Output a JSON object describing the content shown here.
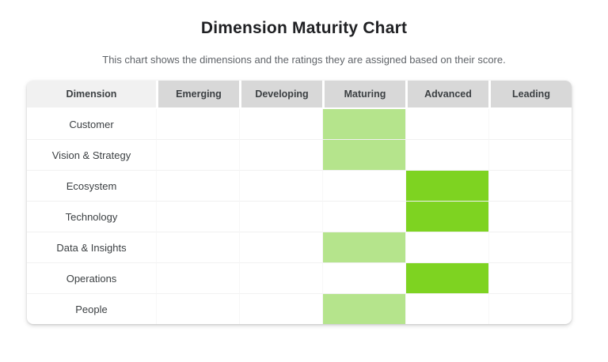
{
  "header": {
    "title": "Dimension Maturity Chart",
    "subtitle": "This chart shows the dimensions and the ratings they are assigned based on their score."
  },
  "chart_data": {
    "type": "heatmap",
    "title": "Dimension Maturity Chart",
    "columns": [
      "Dimension",
      "Emerging",
      "Developing",
      "Maturing",
      "Advanced",
      "Leading"
    ],
    "rows": [
      {
        "dimension": "Customer",
        "rating": "Maturing"
      },
      {
        "dimension": "Vision & Strategy",
        "rating": "Maturing"
      },
      {
        "dimension": "Ecosystem",
        "rating": "Advanced"
      },
      {
        "dimension": "Technology",
        "rating": "Advanced"
      },
      {
        "dimension": "Data & Insights",
        "rating": "Maturing"
      },
      {
        "dimension": "Operations",
        "rating": "Advanced"
      },
      {
        "dimension": "People",
        "rating": "Maturing"
      }
    ],
    "rating_colors": {
      "Maturing": "#b5e48c",
      "Advanced": "#7ed321"
    },
    "theme": {
      "header_bg": "#d8d8d8",
      "dimension_header_bg": "#f1f1f1"
    }
  }
}
